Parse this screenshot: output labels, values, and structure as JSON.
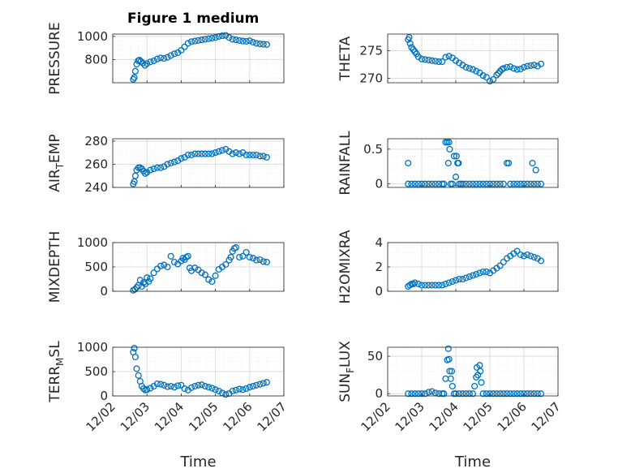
{
  "title": "Figure 1 medium",
  "colors": {
    "marker": "#0072BD",
    "axis": "#262626",
    "grid": "#dcdcdc",
    "minorGrid": "#eeeeee"
  },
  "chart_data": [
    {
      "type": "scatter",
      "ylabel": "PRESSURE",
      "ylim": [
        600,
        1020
      ],
      "yticks": [
        800,
        1000
      ],
      "xticks": [
        "12/02",
        "12/03",
        "12/04",
        "12/05",
        "12/06",
        "12/07"
      ],
      "xlim": [
        0,
        5
      ],
      "grid": true,
      "x": [
        0.6,
        0.63,
        0.66,
        0.7,
        0.74,
        0.78,
        0.82,
        0.88,
        0.94,
        1.0,
        1.1,
        1.2,
        1.3,
        1.4,
        1.5,
        1.6,
        1.7,
        1.8,
        1.9,
        2.0,
        2.1,
        2.2,
        2.3,
        2.4,
        2.5,
        2.6,
        2.7,
        2.8,
        2.9,
        3.0,
        3.1,
        3.2,
        3.3,
        3.4,
        3.5,
        3.6,
        3.7,
        3.8,
        3.9,
        4.0,
        4.1,
        4.2,
        4.3,
        4.4,
        4.5
      ],
      "y": [
        630,
        645,
        700,
        760,
        790,
        795,
        785,
        770,
        750,
        765,
        780,
        790,
        805,
        815,
        810,
        820,
        835,
        850,
        860,
        880,
        910,
        940,
        955,
        960,
        965,
        970,
        975,
        980,
        985,
        990,
        1000,
        1005,
        1008,
        990,
        975,
        970,
        965,
        960,
        958,
        962,
        950,
        940,
        935,
        932,
        930
      ]
    },
    {
      "type": "scatter",
      "ylabel": "THETA",
      "ylim": [
        269.2,
        278
      ],
      "yticks": [
        270,
        275
      ],
      "xticks": [
        "12/02",
        "12/03",
        "12/04",
        "12/05",
        "12/06",
        "12/07"
      ],
      "xlim": [
        0,
        5
      ],
      "grid": true,
      "x": [
        0.6,
        0.63,
        0.66,
        0.7,
        0.75,
        0.8,
        0.85,
        0.9,
        1.0,
        1.1,
        1.2,
        1.3,
        1.4,
        1.5,
        1.6,
        1.7,
        1.8,
        1.9,
        2.0,
        2.1,
        2.2,
        2.3,
        2.4,
        2.5,
        2.6,
        2.7,
        2.8,
        2.9,
        3.0,
        3.1,
        3.2,
        3.25,
        3.3,
        3.35,
        3.4,
        3.5,
        3.6,
        3.7,
        3.8,
        3.9,
        4.0,
        4.1,
        4.2,
        4.3,
        4.4,
        4.5
      ],
      "y": [
        277.0,
        277.4,
        276.3,
        275.6,
        275.2,
        274.8,
        274.4,
        273.9,
        273.5,
        273.4,
        273.3,
        273.2,
        273.1,
        273.0,
        273.0,
        273.8,
        274.0,
        273.7,
        273.2,
        272.8,
        272.4,
        272.0,
        271.8,
        271.6,
        271.3,
        271.0,
        270.5,
        270.2,
        269.5,
        269.8,
        270.6,
        270.9,
        271.3,
        271.6,
        271.8,
        272.0,
        272.1,
        271.8,
        271.6,
        271.7,
        272.0,
        272.2,
        272.3,
        272.4,
        272.2,
        272.6
      ]
    },
    {
      "type": "scatter",
      "ylabel": "AIR_TEMP",
      "ylabel_main": "AIR",
      "ylabel_sub": "T",
      "ylabel_rest": "EMP",
      "ylim": [
        240,
        282
      ],
      "yticks": [
        240,
        260,
        280
      ],
      "xticks": [
        "12/02",
        "12/03",
        "12/04",
        "12/05",
        "12/06",
        "12/07"
      ],
      "xlim": [
        0,
        5
      ],
      "grid": true,
      "x": [
        0.6,
        0.63,
        0.66,
        0.7,
        0.75,
        0.8,
        0.85,
        0.9,
        0.95,
        1.0,
        1.1,
        1.2,
        1.3,
        1.4,
        1.5,
        1.6,
        1.7,
        1.8,
        1.9,
        2.0,
        2.1,
        2.2,
        2.3,
        2.4,
        2.5,
        2.6,
        2.7,
        2.8,
        2.9,
        3.0,
        3.1,
        3.2,
        3.3,
        3.4,
        3.5,
        3.6,
        3.7,
        3.8,
        3.9,
        4.0,
        4.1,
        4.2,
        4.3,
        4.4,
        4.5
      ],
      "y": [
        243,
        245,
        250,
        255,
        257,
        257,
        256,
        254,
        252,
        253,
        255,
        256,
        257,
        257,
        258,
        260,
        261,
        262,
        263,
        265,
        266,
        268,
        268,
        269,
        269,
        269,
        269,
        269,
        269,
        270,
        271,
        272,
        273,
        271,
        269,
        270,
        269,
        270,
        268,
        268,
        268,
        268,
        267,
        267,
        266
      ]
    },
    {
      "type": "scatter",
      "ylabel": "RAINFALL",
      "ylim": [
        -0.05,
        0.65
      ],
      "yticks": [
        0,
        0.5
      ],
      "ytick_labels": [
        "0",
        "0.5"
      ],
      "xticks": [
        "12/02",
        "12/03",
        "12/04",
        "12/05",
        "12/06",
        "12/07"
      ],
      "xlim": [
        0,
        5
      ],
      "grid": true,
      "x": [
        0.6,
        0.6,
        0.7,
        0.8,
        0.9,
        1.0,
        1.1,
        1.2,
        1.3,
        1.4,
        1.5,
        1.6,
        1.65,
        1.7,
        1.75,
        1.78,
        1.8,
        1.82,
        1.85,
        1.9,
        1.95,
        2.0,
        2.02,
        2.05,
        2.08,
        2.1,
        2.15,
        2.2,
        2.3,
        2.4,
        2.5,
        2.6,
        2.7,
        2.8,
        2.9,
        3.0,
        3.1,
        3.2,
        3.3,
        3.4,
        3.5,
        3.55,
        3.6,
        3.7,
        3.8,
        3.9,
        4.0,
        4.1,
        4.2,
        4.25,
        4.3,
        4.35,
        4.4,
        4.5
      ],
      "y": [
        0.3,
        0,
        0,
        0,
        0,
        0,
        0,
        0,
        0,
        0,
        0,
        0,
        0,
        0.6,
        0.6,
        0.3,
        0.6,
        0.5,
        0,
        0,
        0.4,
        0.1,
        0.4,
        0.3,
        0.3,
        0,
        0,
        0,
        0,
        0,
        0,
        0,
        0,
        0,
        0,
        0,
        0,
        0,
        0,
        0,
        0.3,
        0.3,
        0,
        0,
        0,
        0,
        0,
        0,
        0,
        0.3,
        0,
        0.2,
        0,
        0
      ]
    },
    {
      "type": "scatter",
      "ylabel": "MIXDEPTH",
      "ylim": [
        0,
        1000
      ],
      "yticks": [
        0,
        500,
        1000
      ],
      "xticks": [
        "12/02",
        "12/03",
        "12/04",
        "12/05",
        "12/06",
        "12/07"
      ],
      "xlim": [
        0,
        5
      ],
      "grid": true,
      "x": [
        0.6,
        0.65,
        0.7,
        0.75,
        0.8,
        0.85,
        0.9,
        0.95,
        1.0,
        1.05,
        1.1,
        1.2,
        1.3,
        1.4,
        1.5,
        1.6,
        1.7,
        1.8,
        1.9,
        2.0,
        2.05,
        2.1,
        2.15,
        2.2,
        2.25,
        2.3,
        2.4,
        2.5,
        2.6,
        2.7,
        2.8,
        2.9,
        3.0,
        3.1,
        3.2,
        3.3,
        3.4,
        3.45,
        3.5,
        3.55,
        3.6,
        3.7,
        3.8,
        3.9,
        4.0,
        4.1,
        4.2,
        4.3,
        4.4,
        4.5
      ],
      "y": [
        20,
        40,
        80,
        120,
        230,
        100,
        180,
        150,
        280,
        200,
        260,
        380,
        460,
        520,
        540,
        500,
        720,
        600,
        560,
        620,
        680,
        650,
        700,
        720,
        480,
        420,
        480,
        440,
        380,
        340,
        240,
        200,
        320,
        450,
        500,
        550,
        640,
        700,
        820,
        880,
        900,
        700,
        720,
        800,
        700,
        680,
        640,
        650,
        610,
        600
      ]
    },
    {
      "type": "scatter",
      "ylabel": "H2OMIXRA",
      "ylim": [
        0,
        4
      ],
      "yticks": [
        0,
        2,
        4
      ],
      "xticks": [
        "12/02",
        "12/03",
        "12/04",
        "12/05",
        "12/06",
        "12/07"
      ],
      "xlim": [
        0,
        5
      ],
      "grid": true,
      "x": [
        0.6,
        0.65,
        0.7,
        0.75,
        0.8,
        0.9,
        1.0,
        1.1,
        1.2,
        1.3,
        1.4,
        1.5,
        1.6,
        1.7,
        1.8,
        1.9,
        2.0,
        2.1,
        2.2,
        2.3,
        2.4,
        2.5,
        2.6,
        2.7,
        2.8,
        2.9,
        3.0,
        3.1,
        3.2,
        3.3,
        3.4,
        3.5,
        3.6,
        3.7,
        3.8,
        3.9,
        4.0,
        4.1,
        4.2,
        4.3,
        4.4,
        4.5
      ],
      "y": [
        0.4,
        0.5,
        0.6,
        0.6,
        0.7,
        0.6,
        0.5,
        0.5,
        0.5,
        0.5,
        0.5,
        0.5,
        0.5,
        0.6,
        0.7,
        0.8,
        0.9,
        1.0,
        1.0,
        1.1,
        1.2,
        1.3,
        1.4,
        1.5,
        1.6,
        1.6,
        1.5,
        1.7,
        1.9,
        2.1,
        2.4,
        2.7,
        2.9,
        3.1,
        3.3,
        3.0,
        2.9,
        3.0,
        2.9,
        2.8,
        2.7,
        2.5
      ]
    },
    {
      "type": "scatter",
      "ylabel": "TERR_MSL",
      "ylabel_main": "TERR",
      "ylabel_sub": "M",
      "ylabel_rest": "SL",
      "ylim": [
        0,
        1000
      ],
      "yticks": [
        0,
        500,
        1000
      ],
      "xticks": [
        "12/02",
        "12/03",
        "12/04",
        "12/05",
        "12/06",
        "12/07"
      ],
      "xlim": [
        0,
        5
      ],
      "grid": true,
      "x": [
        0.6,
        0.63,
        0.66,
        0.7,
        0.75,
        0.8,
        0.85,
        0.9,
        0.95,
        1.0,
        1.1,
        1.2,
        1.3,
        1.4,
        1.5,
        1.6,
        1.7,
        1.8,
        1.9,
        2.0,
        2.1,
        2.2,
        2.3,
        2.4,
        2.5,
        2.6,
        2.7,
        2.8,
        2.9,
        3.0,
        3.1,
        3.2,
        3.3,
        3.4,
        3.5,
        3.6,
        3.7,
        3.8,
        3.9,
        4.0,
        4.1,
        4.2,
        4.3,
        4.4,
        4.5
      ],
      "y": [
        900,
        980,
        800,
        560,
        420,
        300,
        200,
        150,
        120,
        130,
        160,
        200,
        250,
        240,
        220,
        190,
        200,
        180,
        210,
        220,
        150,
        120,
        170,
        200,
        220,
        230,
        200,
        180,
        160,
        130,
        100,
        60,
        30,
        50,
        100,
        120,
        140,
        130,
        150,
        180,
        200,
        220,
        240,
        260,
        280
      ]
    },
    {
      "type": "scatter",
      "ylabel": "SUN_FLUX",
      "ylabel_main": "SUN",
      "ylabel_sub": "F",
      "ylabel_rest": "LUX",
      "ylim": [
        -3,
        62
      ],
      "yticks": [
        0,
        50
      ],
      "xticks": [
        "12/02",
        "12/03",
        "12/04",
        "12/05",
        "12/06",
        "12/07"
      ],
      "xlim": [
        0,
        5
      ],
      "grid": true,
      "x": [
        0.6,
        0.7,
        0.8,
        0.9,
        1.0,
        1.1,
        1.2,
        1.3,
        1.4,
        1.5,
        1.6,
        1.65,
        1.7,
        1.75,
        1.78,
        1.8,
        1.82,
        1.85,
        1.88,
        1.9,
        1.95,
        2.0,
        2.1,
        2.2,
        2.3,
        2.4,
        2.5,
        2.55,
        2.6,
        2.62,
        2.65,
        2.7,
        2.72,
        2.75,
        2.8,
        2.9,
        3.0,
        3.1,
        3.2,
        3.3,
        3.4,
        3.5,
        3.6,
        3.7,
        3.8,
        3.9,
        4.0,
        4.1,
        4.2,
        4.3,
        4.4,
        4.5
      ],
      "y": [
        0,
        0,
        0,
        0,
        0,
        0,
        2,
        3,
        1,
        0,
        0,
        0,
        20,
        45,
        60,
        46,
        30,
        20,
        30,
        10,
        0,
        0,
        0,
        0,
        0,
        0,
        0,
        10,
        22,
        35,
        25,
        38,
        30,
        15,
        0,
        0,
        0,
        0,
        0,
        0,
        0,
        0,
        0,
        0,
        0,
        0,
        0,
        0,
        0,
        0,
        0,
        0
      ]
    }
  ],
  "xlabel": "Time",
  "xticks": [
    "12/02",
    "12/03",
    "12/04",
    "12/05",
    "12/06",
    "12/07"
  ]
}
